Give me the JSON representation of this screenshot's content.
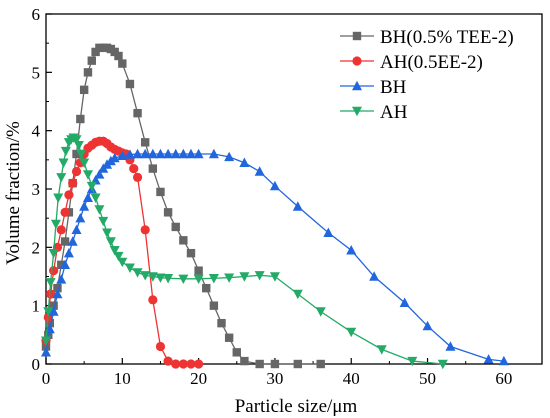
{
  "chart_data": {
    "type": "line",
    "xlabel": "Particle size/μm",
    "ylabel": "Volume fraction/%",
    "xlim": [
      0,
      65
    ],
    "ylim": [
      0,
      6
    ],
    "xticks": [
      "0",
      "10",
      "20",
      "30",
      "40",
      "50",
      "60"
    ],
    "yticks": [
      "0",
      "1",
      "2",
      "3",
      "4",
      "5",
      "6"
    ],
    "grid": false,
    "legend_position": "top-right",
    "series": [
      {
        "name": "BH(0.5% TEE-2)",
        "color": "#666666",
        "marker": "square",
        "x": [
          0,
          0.3,
          0.5,
          1,
          1.5,
          2,
          2.5,
          3,
          3.5,
          4,
          4.5,
          5,
          5.5,
          6,
          6.5,
          7,
          7.5,
          8,
          8.5,
          9,
          9.5,
          10,
          11,
          12,
          13,
          14,
          15,
          16,
          17,
          18,
          19,
          20,
          21,
          22,
          23,
          24,
          25,
          26,
          28,
          30,
          33,
          36
        ],
        "y": [
          0.3,
          0.5,
          0.7,
          1.0,
          1.3,
          1.7,
          2.1,
          2.6,
          3.1,
          3.6,
          4.2,
          4.7,
          5.0,
          5.2,
          5.35,
          5.42,
          5.42,
          5.42,
          5.4,
          5.35,
          5.28,
          5.15,
          4.8,
          4.3,
          3.8,
          3.35,
          2.95,
          2.6,
          2.35,
          2.12,
          1.9,
          1.6,
          1.3,
          1.0,
          0.7,
          0.45,
          0.2,
          0.05,
          0.0,
          0.0,
          0.0,
          0.0
        ],
        "y_values_note_free": true
      },
      {
        "name": "AH(0.5EE-2)",
        "color": "#ee3333",
        "marker": "circle",
        "x": [
          0,
          0.3,
          0.6,
          1,
          1.5,
          2,
          2.5,
          3,
          3.5,
          4,
          4.5,
          5,
          5.5,
          6,
          6.5,
          7,
          7.5,
          8,
          8.5,
          9,
          9.5,
          10,
          10.5,
          11,
          11.5,
          12,
          13,
          14,
          15,
          16,
          17,
          18,
          19,
          20
        ],
        "y": [
          0.4,
          0.8,
          1.2,
          1.6,
          2.0,
          2.3,
          2.6,
          2.9,
          3.1,
          3.3,
          3.45,
          3.6,
          3.7,
          3.75,
          3.8,
          3.82,
          3.82,
          3.78,
          3.72,
          3.68,
          3.65,
          3.62,
          3.6,
          3.5,
          3.35,
          3.2,
          2.3,
          1.1,
          0.3,
          0.05,
          0.0,
          0.0,
          0.0,
          0.0
        ]
      },
      {
        "name": "BH",
        "color": "#2266dd",
        "marker": "triangle-up",
        "x": [
          0,
          0.5,
          1,
          1.5,
          2,
          2.5,
          3,
          3.5,
          4,
          4.5,
          5,
          5.5,
          6,
          6.5,
          7,
          7.5,
          8,
          8.5,
          9,
          10,
          11,
          12,
          13,
          14,
          15,
          16,
          17,
          18,
          19,
          20,
          22,
          24,
          26,
          28,
          30,
          33,
          37,
          40,
          43,
          47,
          50,
          53,
          58,
          60
        ],
        "y": [
          0.2,
          0.6,
          0.9,
          1.2,
          1.45,
          1.7,
          1.9,
          2.1,
          2.3,
          2.5,
          2.7,
          2.85,
          3.0,
          3.15,
          3.25,
          3.35,
          3.42,
          3.48,
          3.53,
          3.57,
          3.59,
          3.6,
          3.6,
          3.6,
          3.6,
          3.6,
          3.6,
          3.6,
          3.6,
          3.6,
          3.6,
          3.55,
          3.45,
          3.3,
          3.05,
          2.7,
          2.25,
          1.95,
          1.5,
          1.05,
          0.65,
          0.3,
          0.08,
          0.05
        ]
      },
      {
        "name": "AH",
        "color": "#22aa66",
        "marker": "triangle-down",
        "x": [
          0,
          0.3,
          0.6,
          1,
          1.3,
          1.6,
          2,
          2.3,
          2.6,
          3,
          3.3,
          3.6,
          4,
          4.3,
          4.6,
          5,
          5.5,
          6,
          6.5,
          7,
          7.5,
          8,
          8.5,
          9,
          9.5,
          10,
          11,
          12,
          13,
          14,
          15,
          16,
          18,
          20,
          22,
          24,
          26,
          28,
          30,
          33,
          36,
          40,
          44,
          48,
          52
        ],
        "y": [
          0.4,
          0.9,
          1.4,
          1.9,
          2.4,
          2.85,
          3.2,
          3.45,
          3.65,
          3.8,
          3.85,
          3.88,
          3.85,
          3.75,
          3.6,
          3.45,
          3.25,
          3.05,
          2.85,
          2.65,
          2.45,
          2.25,
          2.1,
          1.95,
          1.85,
          1.75,
          1.65,
          1.57,
          1.52,
          1.5,
          1.48,
          1.47,
          1.46,
          1.46,
          1.47,
          1.48,
          1.5,
          1.52,
          1.5,
          1.2,
          0.9,
          0.55,
          0.25,
          0.05,
          0.0
        ]
      }
    ]
  }
}
